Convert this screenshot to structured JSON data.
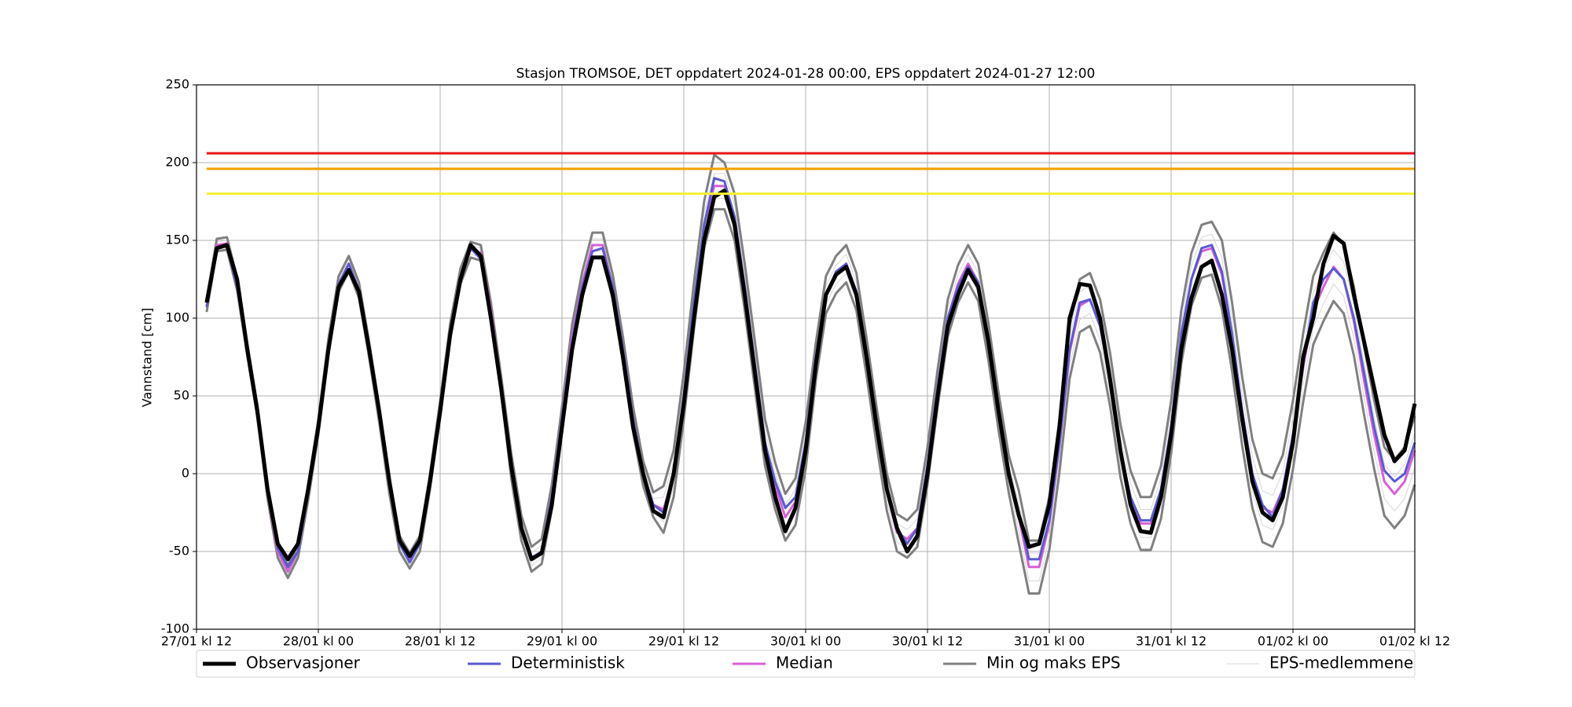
{
  "chart_data": {
    "type": "line",
    "title": "Stasjon TROMSOE, DET oppdatert 2024-01-28 00:00, EPS oppdatert 2024-01-27 12:00",
    "ylabel": "Vannstand [cm]",
    "xlim": [
      0,
      120
    ],
    "xticks": [
      {
        "value": 0,
        "label": "27/01 kl 12"
      },
      {
        "value": 12,
        "label": "28/01 kl 00"
      },
      {
        "value": 24,
        "label": "28/01 kl 12"
      },
      {
        "value": 36,
        "label": "29/01 kl 00"
      },
      {
        "value": 48,
        "label": "29/01 kl 12"
      },
      {
        "value": 60,
        "label": "30/01 kl 00"
      },
      {
        "value": 72,
        "label": "30/01 kl 12"
      },
      {
        "value": 84,
        "label": "31/01 kl 00"
      },
      {
        "value": 96,
        "label": "31/01 kl 12"
      },
      {
        "value": 108,
        "label": "01/02 kl 00"
      },
      {
        "value": 120,
        "label": "01/02 kl 12"
      }
    ],
    "ylim": [
      -100,
      250
    ],
    "yticks": [
      -100,
      -50,
      0,
      50,
      100,
      150,
      200,
      250
    ],
    "grid": true,
    "legend": "bottom",
    "reference_lines": [
      {
        "value": 206,
        "color": "#e8161a"
      },
      {
        "value": 196,
        "color": "#f5a000"
      },
      {
        "value": 180,
        "color": "#f5f032"
      }
    ],
    "x": [
      1,
      2,
      3,
      4,
      5,
      6,
      7,
      8,
      9,
      10,
      11,
      12,
      13,
      14,
      15,
      16,
      17,
      18,
      19,
      20,
      21,
      22,
      23,
      24,
      25,
      26,
      27,
      28,
      29,
      30,
      31,
      32,
      33,
      34,
      35,
      36,
      37,
      38,
      39,
      40,
      41,
      42,
      43,
      44,
      45,
      46,
      47,
      48,
      49,
      50,
      51,
      52,
      53,
      54,
      55,
      56,
      57,
      58,
      59,
      60,
      61,
      62,
      63,
      64,
      65,
      66,
      67,
      68,
      69,
      70,
      71,
      72,
      73,
      74,
      75,
      76,
      77,
      78,
      79,
      80,
      81,
      82,
      83,
      84,
      85,
      86,
      87,
      88,
      89,
      90,
      91,
      92,
      93,
      94,
      95,
      96,
      97,
      98,
      99,
      100,
      101,
      102,
      103,
      104,
      105,
      106,
      107,
      108,
      109,
      110,
      111,
      112,
      113,
      114,
      115,
      116,
      117,
      118,
      119,
      120
    ],
    "series": [
      {
        "name": "Observasjoner",
        "color": "#000000",
        "values": [
          110,
          145,
          147,
          125,
          80,
          40,
          -10,
          -45,
          -55,
          -45,
          -10,
          30,
          80,
          120,
          131,
          117,
          80,
          40,
          -5,
          -43,
          -53,
          -43,
          -5,
          40,
          90,
          125,
          147,
          140,
          100,
          55,
          5,
          -35,
          -55,
          -51,
          -20,
          30,
          80,
          115,
          139,
          139,
          115,
          75,
          30,
          0,
          -24,
          -28,
          0,
          45,
          100,
          150,
          178,
          182,
          160,
          115,
          65,
          15,
          -15,
          -37,
          -22,
          15,
          70,
          115,
          128,
          133,
          115,
          75,
          30,
          -10,
          -35,
          -50,
          -40,
          0,
          50,
          95,
          115,
          131,
          120,
          85,
          40,
          0,
          -27,
          -47,
          -45,
          -20,
          30,
          100,
          122,
          121,
          100,
          60,
          15,
          -20,
          -37,
          -38,
          -15,
          25,
          80,
          113,
          133,
          137,
          115,
          80,
          35,
          -5,
          -25,
          -30,
          -15,
          20,
          75,
          100,
          135,
          153,
          148,
          115,
          85,
          55,
          25,
          8,
          15,
          45
        ]
      },
      {
        "name": "Deterministisk",
        "color": "#5a5ad2",
        "values": [
          107,
          145,
          147,
          120,
          80,
          40,
          -10,
          -48,
          -60,
          -50,
          -12,
          30,
          80,
          122,
          135,
          118,
          80,
          40,
          -5,
          -45,
          -57,
          -45,
          -5,
          40,
          90,
          125,
          145,
          138,
          100,
          55,
          5,
          -35,
          -54,
          -50,
          -15,
          35,
          85,
          120,
          143,
          145,
          120,
          80,
          35,
          0,
          -20,
          -25,
          0,
          50,
          110,
          160,
          190,
          188,
          165,
          120,
          70,
          20,
          -5,
          -22,
          -15,
          20,
          75,
          115,
          130,
          135,
          117,
          75,
          30,
          -10,
          -35,
          -45,
          -35,
          5,
          55,
          100,
          120,
          133,
          123,
          85,
          40,
          0,
          -25,
          -55,
          -55,
          -30,
          20,
          80,
          110,
          112,
          95,
          60,
          15,
          -15,
          -30,
          -30,
          -10,
          30,
          90,
          125,
          145,
          147,
          130,
          90,
          40,
          0,
          -20,
          -28,
          -10,
          25,
          70,
          110,
          125,
          132,
          125,
          100,
          65,
          30,
          2,
          -5,
          0,
          20
        ]
      },
      {
        "name": "Median",
        "color": "#d760d7",
        "values": [
          108,
          147,
          148,
          122,
          80,
          40,
          -12,
          -50,
          -63,
          -50,
          -12,
          30,
          82,
          122,
          135,
          118,
          80,
          38,
          -8,
          -45,
          -56,
          -45,
          -5,
          42,
          92,
          127,
          144,
          142,
          105,
          58,
          5,
          -35,
          -55,
          -50,
          -15,
          35,
          88,
          122,
          147,
          147,
          120,
          80,
          35,
          0,
          -20,
          -23,
          0,
          50,
          108,
          160,
          185,
          185,
          165,
          120,
          70,
          20,
          -8,
          -28,
          -18,
          18,
          72,
          115,
          128,
          135,
          117,
          75,
          30,
          -12,
          -38,
          -42,
          -35,
          5,
          55,
          100,
          122,
          135,
          123,
          85,
          40,
          0,
          -28,
          -60,
          -60,
          -32,
          18,
          78,
          108,
          112,
          95,
          60,
          15,
          -15,
          -32,
          -32,
          -12,
          30,
          88,
          125,
          143,
          145,
          128,
          88,
          40,
          0,
          -22,
          -25,
          -10,
          25,
          68,
          105,
          120,
          133,
          125,
          98,
          60,
          25,
          -5,
          -13,
          -5,
          15
        ]
      },
      {
        "name": "Min og maks EPS",
        "color": "#808080",
        "min": [
          104,
          143,
          144,
          118,
          76,
          36,
          -16,
          -54,
          -67,
          -54,
          -17,
          25,
          77,
          117,
          130,
          113,
          75,
          33,
          -13,
          -50,
          -61,
          -50,
          -10,
          37,
          87,
          122,
          139,
          137,
          100,
          53,
          -3,
          -43,
          -63,
          -58,
          -23,
          27,
          80,
          114,
          139,
          139,
          112,
          72,
          27,
          -8,
          -28,
          -38,
          -15,
          35,
          93,
          145,
          170,
          170,
          150,
          105,
          55,
          5,
          -23,
          -43,
          -33,
          3,
          60,
          103,
          116,
          123,
          105,
          63,
          18,
          -24,
          -50,
          -54,
          -47,
          -7,
          43,
          88,
          110,
          123,
          111,
          73,
          28,
          -12,
          -45,
          -77,
          -77,
          -49,
          1,
          61,
          91,
          95,
          78,
          43,
          -2,
          -32,
          -49,
          -49,
          -29,
          13,
          71,
          108,
          126,
          128,
          106,
          66,
          18,
          -22,
          -44,
          -47,
          -32,
          3,
          46,
          83,
          98,
          111,
          103,
          76,
          38,
          3,
          -27,
          -35,
          -27,
          -7
        ],
        "max": [
          112,
          151,
          152,
          126,
          84,
          44,
          -8,
          -46,
          -59,
          -46,
          -7,
          35,
          87,
          127,
          140,
          123,
          85,
          43,
          -3,
          -40,
          -51,
          -40,
          0,
          47,
          97,
          132,
          149,
          147,
          110,
          63,
          13,
          -27,
          -47,
          -42,
          -7,
          43,
          96,
          130,
          155,
          155,
          128,
          88,
          43,
          8,
          -12,
          -8,
          15,
          65,
          123,
          175,
          205,
          200,
          180,
          135,
          85,
          35,
          7,
          -13,
          -3,
          33,
          84,
          127,
          140,
          147,
          129,
          87,
          42,
          0,
          -26,
          -30,
          -23,
          17,
          67,
          112,
          134,
          147,
          135,
          97,
          52,
          12,
          -11,
          -43,
          -43,
          -15,
          35,
          95,
          125,
          129,
          112,
          77,
          32,
          2,
          -15,
          -15,
          5,
          47,
          105,
          142,
          160,
          162,
          150,
          110,
          62,
          22,
          0,
          -3,
          12,
          47,
          90,
          127,
          142,
          155,
          147,
          120,
          82,
          47,
          17,
          9,
          17,
          37
        ]
      },
      {
        "name": "EPS-medlemmene",
        "color": "#d6d6d6",
        "members": [
          [
            110,
            149,
            150,
            124,
            82,
            42,
            -10,
            -48,
            -61,
            -48,
            -9,
            33,
            85,
            125,
            138,
            121,
            83,
            41,
            -5,
            -42,
            -53,
            -42,
            -2,
            45,
            95,
            130,
            147,
            145,
            108,
            61,
            9,
            -31,
            -51,
            -46,
            -11,
            39,
            92,
            126,
            151,
            151,
            124,
            84,
            39,
            4,
            -16,
            -15,
            8,
            58,
            116,
            168,
            193,
            193,
            173,
            128,
            78,
            28,
            0,
            -20,
            -10,
            26,
            78,
            121,
            134,
            141,
            123,
            81,
            36,
            -6,
            -32,
            -36,
            -29,
            11,
            61,
            106,
            128,
            141,
            129,
            91,
            46,
            6,
            -19,
            -51,
            -51,
            -23,
            27,
            87,
            117,
            121,
            104,
            69,
            24,
            -6,
            -23,
            -23,
            -3,
            39,
            97,
            134,
            152,
            154,
            139,
            99,
            51,
            11,
            -11,
            -14,
            1,
            36,
            79,
            116,
            131,
            144,
            136,
            109,
            71,
            36,
            6,
            -2,
            6,
            26
          ],
          [
            106,
            145,
            146,
            120,
            78,
            38,
            -14,
            -52,
            -65,
            -52,
            -15,
            27,
            79,
            119,
            132,
            115,
            77,
            35,
            -11,
            -48,
            -59,
            -48,
            -8,
            39,
            89,
            124,
            141,
            139,
            102,
            55,
            1,
            -39,
            -59,
            -54,
            -19,
            31,
            84,
            118,
            143,
            143,
            116,
            76,
            31,
            -4,
            -24,
            -31,
            -8,
            42,
            100,
            152,
            177,
            177,
            157,
            112,
            62,
            12,
            -16,
            -36,
            -26,
            10,
            66,
            109,
            122,
            129,
            111,
            69,
            24,
            -18,
            -44,
            -48,
            -41,
            -1,
            49,
            94,
            116,
            129,
            117,
            79,
            34,
            -6,
            -37,
            -69,
            -69,
            -41,
            9,
            69,
            99,
            103,
            86,
            51,
            6,
            -24,
            -41,
            -41,
            -21,
            21,
            79,
            116,
            134,
            136,
            117,
            77,
            29,
            -11,
            -33,
            -36,
            -21,
            14,
            57,
            94,
            109,
            122,
            114,
            87,
            49,
            14,
            -16,
            -24,
            -16,
            4
          ]
        ]
      }
    ]
  }
}
